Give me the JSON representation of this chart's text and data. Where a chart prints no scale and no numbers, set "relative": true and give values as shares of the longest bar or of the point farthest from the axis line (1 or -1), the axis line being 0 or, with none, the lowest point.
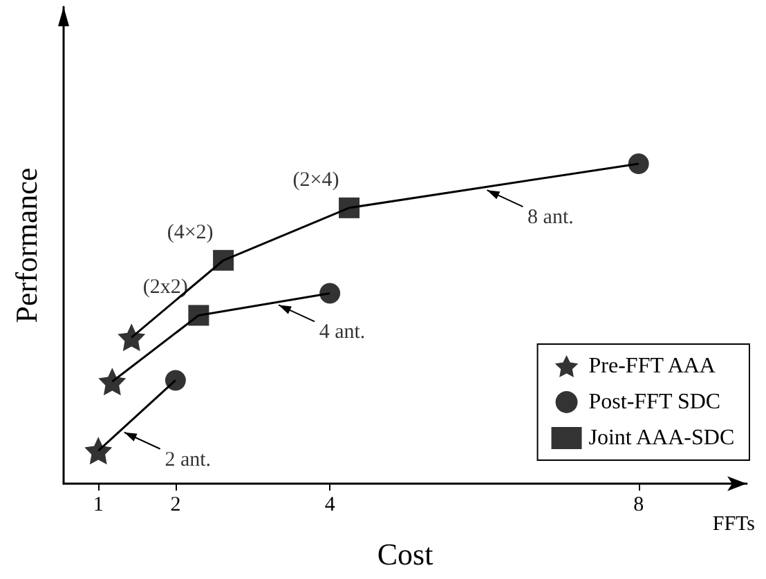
{
  "chart_data": {
    "type": "line",
    "relative": true,
    "xlabel": "Cost",
    "ylabel": "Performance",
    "xlim": [
      0.55,
      9.4
    ],
    "xticks": [
      1,
      2,
      4,
      8
    ],
    "tick_labels": "x",
    "grid": false,
    "legend": "bottom right",
    "series": [
      {
        "color": "#000000",
        "marker": "none",
        "x": [
          1,
          2
        ],
        "values": [
          0.103,
          0.323
        ]
      },
      {
        "color": "#000000",
        "marker": "none",
        "x": [
          1.18,
          2.3,
          4
        ],
        "values": [
          0.319,
          0.526,
          0.595
        ]
      },
      {
        "color": "#000000",
        "marker": "none",
        "x": [
          1.43,
          2.62,
          4.25,
          8
        ],
        "values": [
          0.457,
          0.698,
          0.862,
          1.0
        ]
      },
      {
        "type": "scatter",
        "name": "Pre-FFT AAA",
        "color": "#000000",
        "marker": "star",
        "x": [
          1,
          1.18,
          1.43
        ],
        "values": [
          0.103,
          0.319,
          0.457
        ]
      },
      {
        "type": "scatter",
        "name": "Post-FFT SDC",
        "color": "#000000",
        "marker": "circle",
        "x": [
          2,
          4,
          8
        ],
        "values": [
          0.323,
          0.595,
          1.0
        ]
      },
      {
        "type": "scatter",
        "name": "Joint AAA-SDC",
        "color": "#000000",
        "marker": "square",
        "x": [
          2.3,
          2.62,
          4.25
        ],
        "values": [
          0.526,
          0.698,
          0.862
        ]
      }
    ],
    "annotations": [
      {
        "text": "(4×2)",
        "x": 2.62,
        "y": 0.698
      },
      {
        "text": "(2×4)",
        "x": 4.25,
        "y": 0.862
      },
      {
        "text": "(2x2)",
        "x": 2.3,
        "y": 0.526
      },
      {
        "text": "8 ant.",
        "x": 6,
        "y": 0.926
      },
      {
        "text": "4 ant.",
        "x": 3.3,
        "y": 0.567
      },
      {
        "text": "2 ant.",
        "x": 1.3,
        "y": 0.169
      },
      "FFTs"
    ]
  }
}
